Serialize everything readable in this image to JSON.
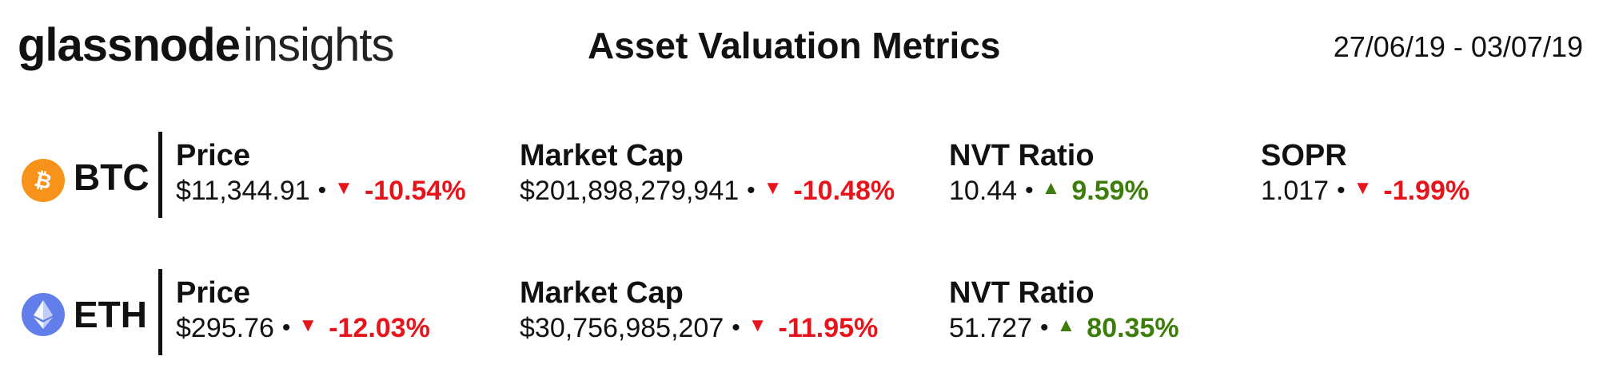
{
  "logo": {
    "brand": "glassnode",
    "suffix": "insights"
  },
  "title": "Asset Valuation Metrics",
  "date_range": "27/06/19 - 03/07/19",
  "colors": {
    "negative": "#e8141c",
    "positive": "#3e7d0c",
    "btc_icon": "#f7931a",
    "eth_icon": "#627eea"
  },
  "separator": "•",
  "rows": [
    {
      "ticker": "BTC",
      "icon": "bitcoin-icon",
      "metrics": [
        {
          "label": "Price",
          "value": "$11,344.91",
          "direction": "down",
          "arrow": "▼",
          "change": "-10.54%"
        },
        {
          "label": "Market Cap",
          "value": "$201,898,279,941",
          "direction": "down",
          "arrow": "▼",
          "change": "-10.48%"
        },
        {
          "label": "NVT Ratio",
          "value": "10.44",
          "direction": "up",
          "arrow": "▲",
          "change": "9.59%"
        },
        {
          "label": "SOPR",
          "value": "1.017",
          "direction": "down",
          "arrow": "▼",
          "change": "-1.99%"
        }
      ]
    },
    {
      "ticker": "ETH",
      "icon": "ethereum-icon",
      "metrics": [
        {
          "label": "Price",
          "value": "$295.76",
          "direction": "down",
          "arrow": "▼",
          "change": "-12.03%"
        },
        {
          "label": "Market Cap",
          "value": "$30,756,985,207",
          "direction": "down",
          "arrow": "▼",
          "change": "-11.95%"
        },
        {
          "label": "NVT Ratio",
          "value": "51.727",
          "direction": "up",
          "arrow": "▲",
          "change": "80.35%"
        }
      ]
    }
  ]
}
